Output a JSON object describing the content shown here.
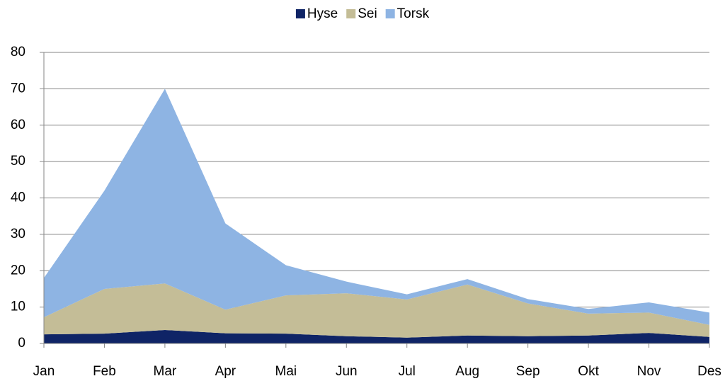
{
  "chart_data": {
    "type": "stacked_area",
    "categories": [
      "Jan",
      "Feb",
      "Mar",
      "Apr",
      "Mai",
      "Jun",
      "Jul",
      "Aug",
      "Sep",
      "Okt",
      "Nov",
      "Des"
    ],
    "series": [
      {
        "name": "Hyse",
        "color": "#0f2466",
        "values": [
          2.5,
          2.7,
          3.7,
          2.8,
          2.7,
          2.0,
          1.6,
          2.2,
          2.0,
          2.2,
          2.9,
          1.8
        ]
      },
      {
        "name": "Sei",
        "color": "#c4bd97",
        "values": [
          4.7,
          12.3,
          12.8,
          6.5,
          10.5,
          11.8,
          10.5,
          14.0,
          9.0,
          6.0,
          5.6,
          3.3
        ]
      },
      {
        "name": "Torsk",
        "color": "#8eb4e3",
        "values": [
          10.8,
          27.0,
          53.5,
          23.7,
          8.3,
          3.2,
          1.4,
          1.5,
          1.2,
          1.3,
          2.8,
          3.4
        ]
      }
    ],
    "ylim": [
      0,
      80
    ],
    "yticks": [
      0,
      10,
      20,
      30,
      40,
      50,
      60,
      70,
      80
    ],
    "grid": true,
    "legend": "top"
  }
}
